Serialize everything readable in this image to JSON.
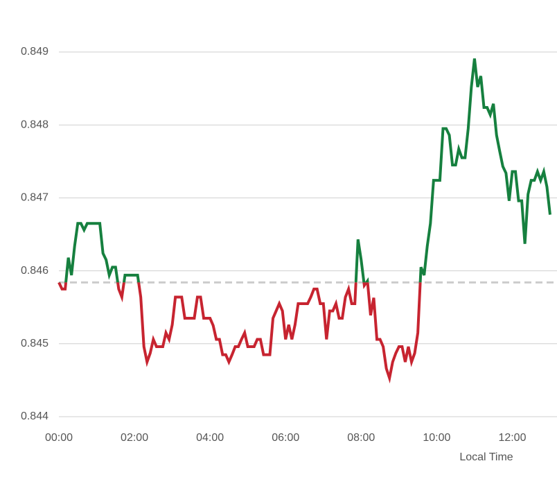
{
  "chart_data": {
    "type": "line",
    "x_label": "Local Time",
    "x": [
      0,
      5,
      10,
      15,
      20,
      25,
      30,
      35,
      40,
      45,
      50,
      55,
      60,
      65,
      70,
      75,
      80,
      85,
      90,
      95,
      100,
      105,
      110,
      115,
      120,
      125,
      130,
      135,
      140,
      145,
      150,
      155,
      160,
      165,
      170,
      175,
      180,
      185,
      190,
      195,
      200,
      205,
      210,
      215,
      220,
      225,
      230,
      235,
      240,
      245,
      250,
      255,
      260,
      265,
      270,
      275,
      280,
      285,
      290,
      295,
      300,
      305,
      310,
      315,
      320,
      325,
      330,
      335,
      340,
      345,
      350,
      355,
      360,
      365,
      370,
      375,
      380,
      385,
      390,
      395,
      400,
      405,
      410,
      415,
      420,
      425,
      430,
      435,
      440,
      445,
      450,
      455,
      460,
      465,
      470,
      475,
      480,
      485,
      490,
      495,
      500,
      505,
      510,
      515,
      520,
      525,
      530,
      535,
      540,
      545,
      550,
      555,
      560,
      565,
      570,
      575,
      580,
      585,
      590,
      595,
      600,
      605,
      610,
      615,
      620,
      625,
      630,
      635,
      640,
      645,
      650,
      655,
      660,
      665,
      670,
      675,
      680,
      685,
      690,
      695,
      700,
      705,
      710,
      715,
      720,
      725,
      730,
      735,
      740,
      745,
      750,
      755,
      760,
      765,
      770,
      775,
      780
    ],
    "values": [
      0.84584,
      0.84575,
      0.84575,
      0.84618,
      0.84594,
      0.84634,
      0.84665,
      0.84665,
      0.84656,
      0.84665,
      0.84665,
      0.84665,
      0.84665,
      0.84665,
      0.84624,
      0.84615,
      0.84594,
      0.84605,
      0.84605,
      0.84575,
      0.84564,
      0.84594,
      0.84594,
      0.84594,
      0.84594,
      0.84594,
      0.84564,
      0.84496,
      0.84475,
      0.84487,
      0.84506,
      0.84496,
      0.84496,
      0.84496,
      0.84515,
      0.84506,
      0.84526,
      0.84564,
      0.84564,
      0.84564,
      0.84535,
      0.84535,
      0.84535,
      0.84535,
      0.84564,
      0.84564,
      0.84535,
      0.84535,
      0.84535,
      0.84525,
      0.84506,
      0.84506,
      0.84485,
      0.84485,
      0.84475,
      0.84485,
      0.84496,
      0.84496,
      0.84506,
      0.84515,
      0.84496,
      0.84496,
      0.84496,
      0.84506,
      0.84506,
      0.84485,
      0.84485,
      0.84485,
      0.84535,
      0.84545,
      0.84555,
      0.84545,
      0.84506,
      0.84526,
      0.84506,
      0.84526,
      0.84555,
      0.84555,
      0.84555,
      0.84555,
      0.84564,
      0.84575,
      0.84575,
      0.84555,
      0.84555,
      0.84506,
      0.84545,
      0.84545,
      0.84555,
      0.84535,
      0.84535,
      0.84564,
      0.84575,
      0.84555,
      0.84555,
      0.84643,
      0.84615,
      0.8458,
      0.84586,
      0.84539,
      0.84563,
      0.84506,
      0.84506,
      0.84496,
      0.84466,
      0.84453,
      0.84475,
      0.84487,
      0.84496,
      0.84496,
      0.84475,
      0.84496,
      0.84475,
      0.84487,
      0.84515,
      0.84605,
      0.84594,
      0.84634,
      0.84665,
      0.84724,
      0.84724,
      0.84724,
      0.84795,
      0.84795,
      0.84786,
      0.84745,
      0.84745,
      0.84767,
      0.84755,
      0.84755,
      0.84795,
      0.84852,
      0.84891,
      0.84852,
      0.84867,
      0.84824,
      0.84824,
      0.84814,
      0.84829,
      0.84786,
      0.84764,
      0.84743,
      0.84734,
      0.84696,
      0.84736,
      0.84736,
      0.84696,
      0.84696,
      0.84637,
      0.84705,
      0.84724,
      0.84724,
      0.84736,
      0.84724,
      0.84736,
      0.84715,
      0.84677
    ],
    "reference_line": 0.84584,
    "color_above": "#16803f",
    "color_below": "#c72430",
    "xlim": [
      0,
      791
    ],
    "xticks": [
      {
        "value": 0,
        "label": "00:00"
      },
      {
        "value": 120,
        "label": "02:00"
      },
      {
        "value": 240,
        "label": "04:00"
      },
      {
        "value": 360,
        "label": "06:00"
      },
      {
        "value": 480,
        "label": "08:00"
      },
      {
        "value": 600,
        "label": "10:00"
      },
      {
        "value": 720,
        "label": "12:00"
      }
    ],
    "ylim": [
      0.844,
      0.849
    ],
    "yticks": [
      0.844,
      0.845,
      0.846,
      0.847,
      0.848,
      0.849
    ],
    "grid": true
  }
}
